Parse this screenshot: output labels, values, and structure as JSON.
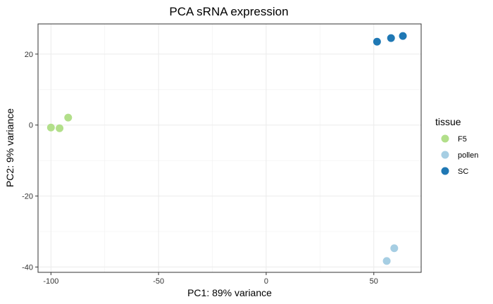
{
  "chart_data": {
    "type": "scatter",
    "title": "PCA sRNA expression",
    "xlabel": "PC1: 89% variance",
    "ylabel": "PC2: 9% variance",
    "xlim": [
      -106,
      72
    ],
    "ylim": [
      -41.5,
      28.5
    ],
    "x_ticks": [
      -100,
      -50,
      0,
      50
    ],
    "y_ticks": [
      -40,
      -20,
      0,
      20
    ],
    "x_minor": [
      -75,
      -25,
      25
    ],
    "y_minor": [
      -30,
      -10,
      10
    ],
    "grid": true,
    "legend": {
      "title": "tissue",
      "position": "right"
    },
    "series": [
      {
        "name": "F5",
        "color": "#b2df8a",
        "points": [
          {
            "x": -100,
            "y": -0.7
          },
          {
            "x": -96,
            "y": -0.9
          },
          {
            "x": -92,
            "y": 2.1
          }
        ]
      },
      {
        "name": "pollen",
        "color": "#a6cee3",
        "points": [
          {
            "x": 59.5,
            "y": -34.7
          },
          {
            "x": 56,
            "y": -38.3
          }
        ]
      },
      {
        "name": "SC",
        "color": "#1f78b4",
        "points": [
          {
            "x": 51.5,
            "y": 23.5
          },
          {
            "x": 58,
            "y": 24.5
          },
          {
            "x": 63.5,
            "y": 25.1
          }
        ]
      }
    ]
  }
}
